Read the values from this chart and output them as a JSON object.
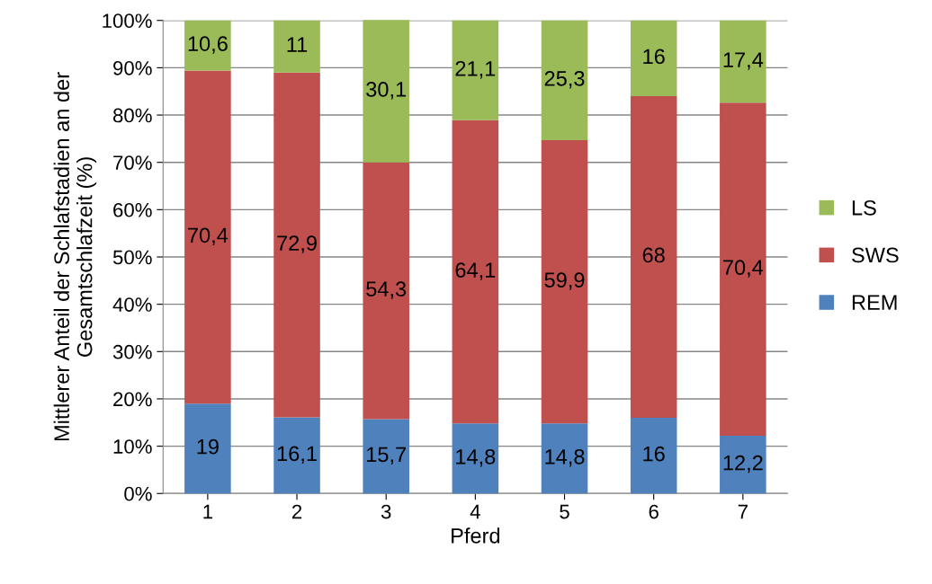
{
  "chart_data": {
    "type": "bar",
    "stacked": true,
    "xlabel": "Pferd",
    "ylabel": "Mittlerer Anteil der Schlafstadien an der Gesamtschlafzeit (%)",
    "categories": [
      "1",
      "2",
      "3",
      "4",
      "5",
      "6",
      "7"
    ],
    "series": [
      {
        "name": "REM",
        "color": "#4f81bd",
        "values": [
          19,
          16.1,
          15.7,
          14.8,
          14.8,
          16,
          12.2
        ],
        "value_labels": [
          "19",
          "16,1",
          "15,7",
          "14,8",
          "14,8",
          "16",
          "12,2"
        ]
      },
      {
        "name": "SWS",
        "color": "#c0504d",
        "values": [
          70.4,
          72.9,
          54.3,
          64.1,
          59.9,
          68,
          70.4
        ],
        "value_labels": [
          "70,4",
          "72,9",
          "54,3",
          "64,1",
          "59,9",
          "68",
          "70,4"
        ]
      },
      {
        "name": "LS",
        "color": "#9bbb59",
        "values": [
          10.6,
          11,
          30.1,
          21.1,
          25.3,
          16,
          17.4
        ],
        "value_labels": [
          "10,6",
          "11",
          "30,1",
          "21,1",
          "25,3",
          "16",
          "17,4"
        ]
      }
    ],
    "ylim": [
      0,
      100
    ],
    "yticks": [
      {
        "value": 0,
        "label": "0%"
      },
      {
        "value": 10,
        "label": "10%"
      },
      {
        "value": 20,
        "label": "20%"
      },
      {
        "value": 30,
        "label": "30%"
      },
      {
        "value": 40,
        "label": "40%"
      },
      {
        "value": 50,
        "label": "50%"
      },
      {
        "value": 60,
        "label": "60%"
      },
      {
        "value": 70,
        "label": "70%"
      },
      {
        "value": 80,
        "label": "80%"
      },
      {
        "value": 90,
        "label": "90%"
      },
      {
        "value": 100,
        "label": "100%"
      }
    ],
    "grid": "y",
    "legend": "right"
  }
}
